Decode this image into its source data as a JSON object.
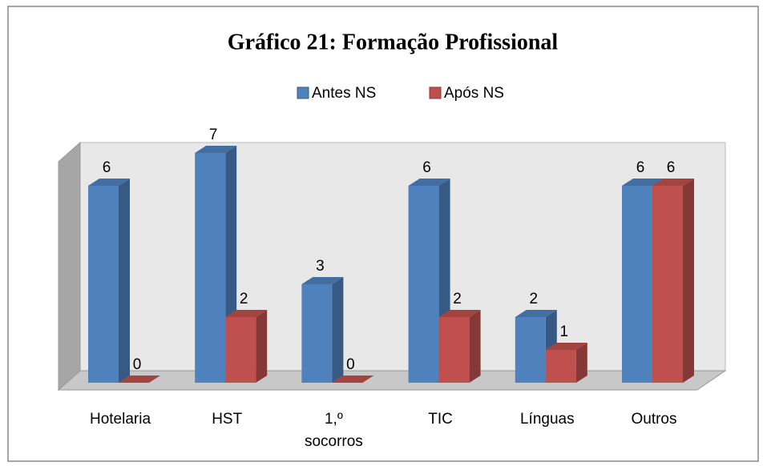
{
  "chart_data": {
    "type": "bar3d",
    "title": "Gráfico 21: Formação Profissional",
    "categories": [
      "Hotelaria",
      "HST",
      "1,º socorros",
      "TIC",
      "Línguas",
      "Outros"
    ],
    "series": [
      {
        "name": "Antes NS",
        "color": "#4f81bd",
        "values": [
          6,
          7,
          3,
          6,
          2,
          6
        ]
      },
      {
        "name": "Após NS",
        "color": "#c0504d",
        "values": [
          0,
          2,
          0,
          2,
          1,
          6
        ]
      }
    ],
    "legend": "top"
  }
}
